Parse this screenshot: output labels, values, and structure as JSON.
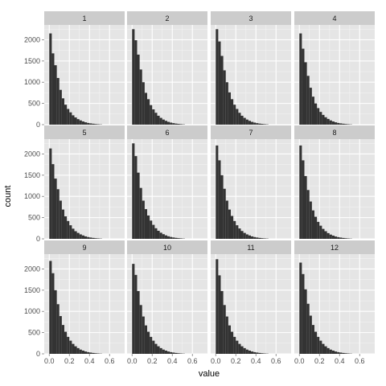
{
  "chart_data": {
    "type": "bar",
    "subtype": "faceted-histogram",
    "title": "",
    "xlabel": "value",
    "ylabel": "count",
    "xlim": [
      -0.05,
      0.75
    ],
    "ylim": [
      0,
      2350
    ],
    "x_ticks": [
      0.0,
      0.2,
      0.4,
      0.6
    ],
    "x_tick_labels": [
      "0.0",
      "0.2",
      "0.4",
      "0.6"
    ],
    "y_ticks": [
      0,
      500,
      1000,
      1500,
      2000
    ],
    "y_tick_labels": [
      "0",
      "500",
      "1000",
      "1500",
      "2000"
    ],
    "bin_width": 0.025,
    "bin_starts": [
      0.0,
      0.025,
      0.05,
      0.075,
      0.1,
      0.125,
      0.15,
      0.175,
      0.2,
      0.225,
      0.25,
      0.275,
      0.3,
      0.325,
      0.35,
      0.375,
      0.4,
      0.425,
      0.45,
      0.475,
      0.5
    ],
    "layout": {
      "rows": 3,
      "cols": 4
    },
    "grid": true,
    "legend": "none",
    "colors": {
      "panel_background": "#e5e5e5",
      "grid_major": "#ffffff",
      "grid_minor": "#f2f2f2",
      "strip_background": "#cccccc",
      "bar_fill": "#333333"
    },
    "panels": [
      {
        "label": "1",
        "counts": [
          2150,
          1680,
          1400,
          1100,
          820,
          620,
          470,
          370,
          290,
          220,
          170,
          130,
          100,
          75,
          55,
          40,
          30,
          22,
          15,
          10,
          6
        ]
      },
      {
        "label": "2",
        "counts": [
          2250,
          1990,
          1650,
          1300,
          1000,
          750,
          600,
          460,
          360,
          280,
          210,
          160,
          120,
          90,
          65,
          48,
          35,
          25,
          18,
          12,
          7
        ]
      },
      {
        "label": "3",
        "counts": [
          2250,
          1960,
          1620,
          1280,
          1000,
          760,
          600,
          470,
          370,
          280,
          210,
          160,
          120,
          90,
          65,
          48,
          35,
          25,
          18,
          12,
          7
        ]
      },
      {
        "label": "4",
        "counts": [
          2150,
          1790,
          1470,
          1150,
          870,
          660,
          500,
          390,
          300,
          230,
          175,
          135,
          100,
          75,
          55,
          40,
          30,
          22,
          15,
          10,
          6
        ]
      },
      {
        "label": "5",
        "counts": [
          2130,
          1760,
          1420,
          1170,
          900,
          690,
          530,
          420,
          320,
          240,
          180,
          140,
          105,
          80,
          58,
          42,
          31,
          22,
          15,
          10,
          6
        ]
      },
      {
        "label": "6",
        "counts": [
          2250,
          1950,
          1560,
          1200,
          900,
          700,
          550,
          430,
          330,
          250,
          190,
          145,
          110,
          82,
          60,
          44,
          32,
          23,
          16,
          11,
          6
        ]
      },
      {
        "label": "7",
        "counts": [
          2200,
          1850,
          1500,
          1180,
          900,
          690,
          540,
          420,
          320,
          245,
          185,
          140,
          105,
          80,
          58,
          42,
          31,
          22,
          15,
          10,
          6
        ]
      },
      {
        "label": "8",
        "counts": [
          2200,
          1850,
          1480,
          1150,
          880,
          670,
          520,
          400,
          310,
          235,
          180,
          135,
          100,
          76,
          55,
          40,
          30,
          21,
          14,
          9,
          5
        ]
      },
      {
        "label": "9",
        "counts": [
          2190,
          1900,
          1500,
          1170,
          890,
          680,
          520,
          400,
          310,
          235,
          178,
          135,
          100,
          76,
          55,
          40,
          30,
          21,
          14,
          9,
          5
        ]
      },
      {
        "label": "10",
        "counts": [
          2120,
          1860,
          1480,
          1150,
          880,
          670,
          520,
          400,
          310,
          235,
          178,
          135,
          100,
          76,
          55,
          40,
          30,
          21,
          14,
          9,
          5
        ]
      },
      {
        "label": "11",
        "counts": [
          2230,
          1850,
          1480,
          1150,
          880,
          670,
          520,
          400,
          310,
          235,
          178,
          135,
          100,
          76,
          55,
          40,
          30,
          21,
          14,
          9,
          5
        ]
      },
      {
        "label": "12",
        "counts": [
          2150,
          1880,
          1520,
          1180,
          900,
          680,
          520,
          400,
          310,
          235,
          178,
          135,
          100,
          76,
          55,
          40,
          30,
          21,
          14,
          9,
          5
        ]
      }
    ]
  }
}
